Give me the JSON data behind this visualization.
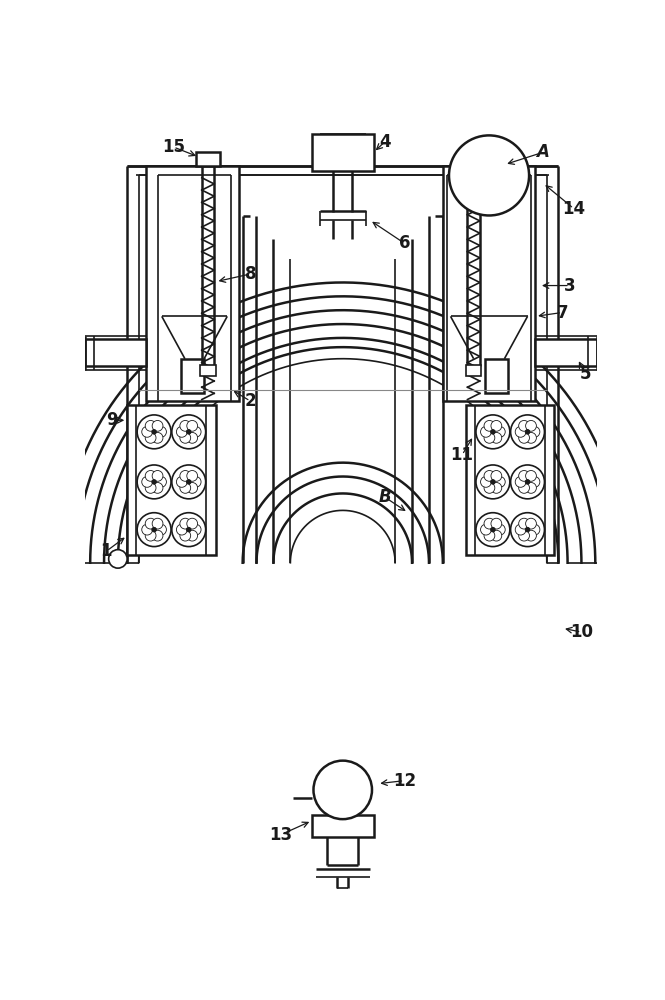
{
  "bg_color": "#ffffff",
  "line_color": "#1a1a1a",
  "figsize": [
    6.65,
    10.0
  ],
  "dpi": 100
}
